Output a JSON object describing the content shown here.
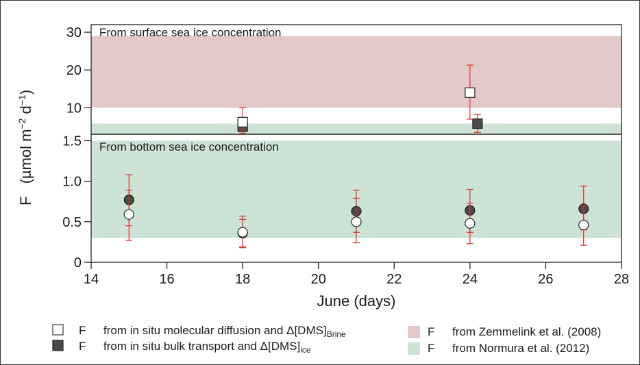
{
  "chart_data": [
    {
      "type": "scatter",
      "title": "From surface sea ice  concentration",
      "xlim": [
        14,
        28
      ],
      "ylim": [
        3,
        32
      ],
      "yticks": [
        10,
        20,
        30
      ],
      "bands": [
        {
          "label": "F",
          "source": "from Zemmelink et al. (2008)",
          "range": [
            10,
            29
          ],
          "color": "#e2c8c8"
        },
        {
          "label": "F",
          "source": "from Normura et al. (2012)",
          "range": [
            3.2,
            5.8
          ],
          "color": "#cde3d6"
        }
      ],
      "series": [
        {
          "name": "open",
          "x": [
            18,
            24
          ],
          "y": [
            6.2,
            14
          ],
          "err_low": [
            4.2,
            7
          ],
          "err_high": [
            10,
            21.3
          ]
        },
        {
          "name": "filled",
          "x": [
            18,
            24.2
          ],
          "y": [
            5,
            5.8
          ],
          "err_low": [
            3.3,
            3.5
          ],
          "err_high": [
            7.5,
            8.2
          ]
        }
      ]
    },
    {
      "type": "scatter",
      "title": "From bottom sea ice concentration",
      "xlim": [
        14,
        28
      ],
      "ylim": [
        0,
        1.58
      ],
      "yticks": [
        0,
        0.5,
        1.0,
        1.5
      ],
      "ytick_labels": [
        "0",
        "0.5",
        "1.0",
        "1.5"
      ],
      "xticks": [
        14,
        16,
        18,
        20,
        22,
        24,
        26,
        28
      ],
      "xlabel": "June (days)",
      "bands": [
        {
          "label": "F",
          "source": "from Normura et al. (2012)",
          "range": [
            0.3,
            1.5
          ],
          "color": "#cde3d6"
        }
      ],
      "series": [
        {
          "name": "open",
          "x": [
            15,
            18,
            21,
            24,
            27
          ],
          "y": [
            0.59,
            0.37,
            0.5,
            0.48,
            0.46
          ],
          "err_low": [
            0.27,
            0.19,
            0.24,
            0.23,
            0.21
          ],
          "err_high": [
            0.89,
            0.53,
            0.79,
            0.73,
            0.7
          ]
        },
        {
          "name": "filled",
          "x": [
            15,
            18,
            21,
            24,
            27
          ],
          "y": [
            0.77,
            0.36,
            0.63,
            0.64,
            0.66
          ],
          "err_low": [
            0.45,
            0.18,
            0.37,
            0.37,
            0.4
          ],
          "err_high": [
            1.08,
            0.57,
            0.89,
            0.9,
            0.94
          ]
        }
      ]
    }
  ],
  "ylabel": {
    "prefix": "F",
    "unit": "(µmol m",
    "exp1": "−2",
    "mid": " d",
    "exp2": "−1",
    "close": ")"
  },
  "legend": {
    "open_marker": {
      "symbol": "F",
      "text": "from in situ molecular diffusion and Δ[DMS]",
      "sub": "Brine"
    },
    "filled_marker": {
      "symbol": "F",
      "text": "from in situ bulk transport and Δ[DMS]",
      "sub": "ice"
    },
    "band_zemmelink": {
      "symbol": "F",
      "text": "from Zemmelink et al. (2008)"
    },
    "band_normura": {
      "symbol": "F",
      "text": "from Normura et al. (2012)"
    }
  },
  "colors": {
    "error_bar": "#d9302b",
    "filled_marker": "#4a4a4a",
    "open_marker": "#ffffff",
    "axis": "#222222"
  }
}
